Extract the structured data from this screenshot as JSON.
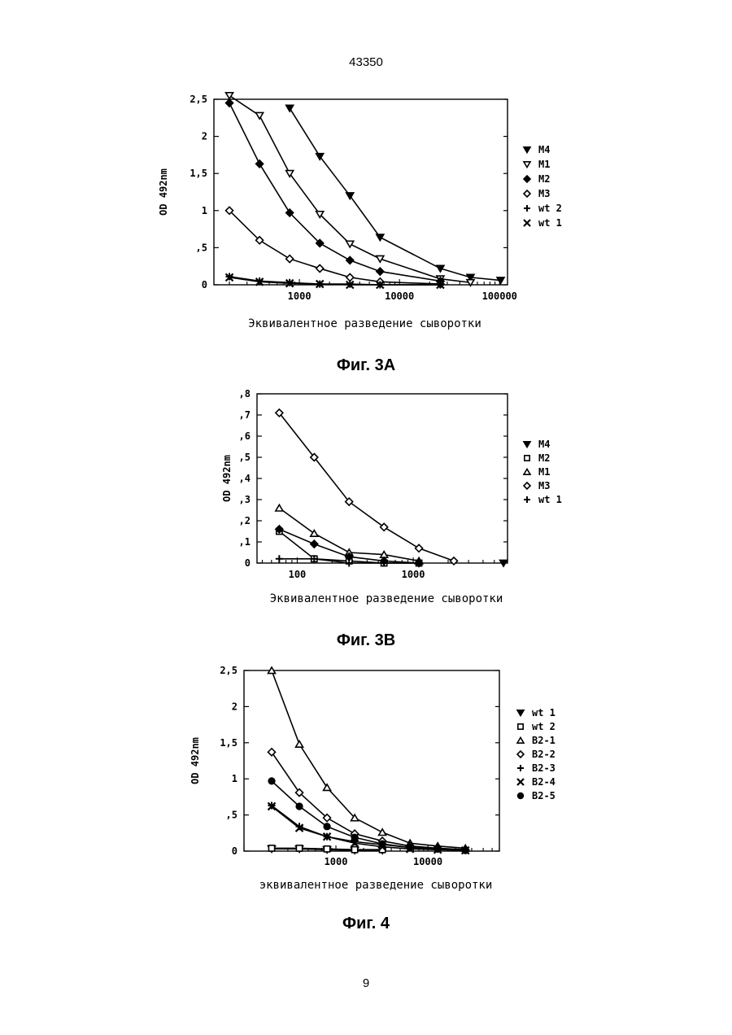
{
  "page": {
    "header_number": "43350",
    "footer_number": "9"
  },
  "charts": [
    {
      "caption": "Фиг. 3А"
    },
    {
      "caption": "Фиг. 3В"
    },
    {
      "caption": "Фиг. 4"
    }
  ],
  "chart_data": [
    {
      "type": "line",
      "ylabel": "OD 492nm",
      "xlabel": "Эквивалентное разведение сыворотки",
      "x_scale": "log",
      "xlim": [
        140,
        120000
      ],
      "ylim": [
        0,
        2.5
      ],
      "yticks": [
        {
          "v": 0,
          "l": "0"
        },
        {
          "v": 0.5,
          "l": ",5"
        },
        {
          "v": 1,
          "l": "1"
        },
        {
          "v": 1.5,
          "l": "1,5"
        },
        {
          "v": 2,
          "l": "2"
        },
        {
          "v": 2.5,
          "l": "2,5"
        }
      ],
      "xticks": [
        {
          "v": 1000,
          "l": "1000"
        },
        {
          "v": 10000,
          "l": "10000"
        },
        {
          "v": 100000,
          "l": "100000"
        }
      ],
      "legend_position": "right",
      "series": [
        {
          "name": "M4",
          "marker": "tri-down-filled",
          "x": [
            800,
            1600,
            3200,
            6400,
            25600,
            51200,
            102400
          ],
          "y": [
            2.38,
            1.73,
            1.2,
            0.64,
            0.22,
            0.1,
            0.06
          ]
        },
        {
          "name": "M1",
          "marker": "tri-down-open",
          "x": [
            200,
            400,
            800,
            1600,
            3200,
            6400,
            25600,
            51200
          ],
          "y": [
            2.55,
            2.28,
            1.5,
            0.95,
            0.55,
            0.35,
            0.08,
            0.03
          ]
        },
        {
          "name": "M2",
          "marker": "diamond-filled",
          "x": [
            200,
            400,
            800,
            1600,
            3200,
            6400,
            25600
          ],
          "y": [
            2.45,
            1.63,
            0.97,
            0.56,
            0.33,
            0.18,
            0.05
          ]
        },
        {
          "name": "M3",
          "marker": "diamond-open",
          "x": [
            200,
            400,
            800,
            1600,
            3200,
            6400,
            25600
          ],
          "y": [
            1.0,
            0.6,
            0.35,
            0.22,
            0.1,
            0.04,
            0.01
          ]
        },
        {
          "name": "wt 2",
          "marker": "plus",
          "x": [
            200,
            400,
            800,
            1600,
            3200,
            6400,
            25600
          ],
          "y": [
            0.11,
            0.05,
            0.03,
            0.01,
            0.01,
            0.0,
            0.0
          ]
        },
        {
          "name": "wt 1",
          "marker": "x",
          "x": [
            200,
            400,
            800,
            1600,
            3200,
            6400,
            25600
          ],
          "y": [
            0.1,
            0.04,
            0.02,
            0.01,
            0.0,
            0.0,
            0.0
          ]
        }
      ]
    },
    {
      "type": "line",
      "ylabel": "OD 492nm",
      "xlabel": "Эквивалентное разведение сыворотки",
      "x_scale": "log",
      "xlim": [
        45,
        6500
      ],
      "ylim": [
        0,
        0.8
      ],
      "yticks": [
        {
          "v": 0,
          "l": "0"
        },
        {
          "v": 0.1,
          "l": ",1"
        },
        {
          "v": 0.2,
          "l": ",2"
        },
        {
          "v": 0.3,
          "l": ",3"
        },
        {
          "v": 0.4,
          "l": ",4"
        },
        {
          "v": 0.5,
          "l": ",5"
        },
        {
          "v": 0.6,
          "l": ",6"
        },
        {
          "v": 0.7,
          "l": ",7"
        },
        {
          "v": 0.8,
          "l": ",8"
        }
      ],
      "xticks": [
        {
          "v": 100,
          "l": "100"
        },
        {
          "v": 1000,
          "l": "1000"
        }
      ],
      "legend_position": "right",
      "series": [
        {
          "name": "M4",
          "marker": "tri-down-filled",
          "x": [
            6000
          ],
          "y": [
            0.0
          ]
        },
        {
          "name": "M2",
          "marker": "square-open",
          "x": [
            70,
            140,
            280,
            560,
            1120
          ],
          "y": [
            0.15,
            0.02,
            0.01,
            0.0,
            0.0
          ]
        },
        {
          "name": "M1",
          "marker": "tri-up-open",
          "x": [
            70,
            140,
            280,
            560,
            1120
          ],
          "y": [
            0.26,
            0.14,
            0.05,
            0.04,
            0.01
          ]
        },
        {
          "name": "M3",
          "marker": "diamond-open",
          "x": [
            70,
            140,
            280,
            560,
            1120,
            2240
          ],
          "y": [
            0.71,
            0.5,
            0.29,
            0.17,
            0.07,
            0.01
          ]
        },
        {
          "name": "wt 1",
          "marker": "plus",
          "x": [
            70,
            140,
            280,
            560,
            1120
          ],
          "y": [
            0.02,
            0.02,
            0.0,
            0.0,
            0.0
          ]
        },
        {
          "name": "",
          "marker": "diamond-filled",
          "x": [
            70,
            140,
            280,
            560,
            1120
          ],
          "y": [
            0.16,
            0.09,
            0.03,
            0.01,
            0.0
          ]
        }
      ]
    },
    {
      "type": "line",
      "ylabel": "OD 492nm",
      "xlabel": "эквивалентное разведение сыворотки",
      "x_scale": "log",
      "xlim": [
        100,
        60000
      ],
      "ylim": [
        0,
        2.5
      ],
      "yticks": [
        {
          "v": 0,
          "l": "0"
        },
        {
          "v": 0.5,
          "l": ",5"
        },
        {
          "v": 1,
          "l": "1"
        },
        {
          "v": 1.5,
          "l": "1,5"
        },
        {
          "v": 2,
          "l": "2"
        },
        {
          "v": 2.5,
          "l": "2,5"
        }
      ],
      "xticks": [
        {
          "v": 1000,
          "l": "1000"
        },
        {
          "v": 10000,
          "l": "10000"
        }
      ],
      "legend_position": "right",
      "series": [
        {
          "name": "wt 1",
          "marker": "tri-down-filled",
          "x": [
            200,
            400,
            800,
            1600,
            3200
          ],
          "y": [
            0.03,
            0.03,
            0.02,
            0.01,
            0.01
          ]
        },
        {
          "name": "wt 2",
          "marker": "square-open",
          "x": [
            200,
            400,
            800,
            1600,
            3200
          ],
          "y": [
            0.04,
            0.04,
            0.03,
            0.02,
            0.02
          ]
        },
        {
          "name": "B2-1",
          "marker": "tri-up-open",
          "x": [
            200,
            400,
            800,
            1600,
            3200,
            6400,
            12800,
            25600
          ],
          "y": [
            2.5,
            1.48,
            0.88,
            0.46,
            0.26,
            0.11,
            0.07,
            0.04
          ]
        },
        {
          "name": "B2-2",
          "marker": "diamond-open",
          "x": [
            200,
            400,
            800,
            1600,
            3200,
            6400,
            12800,
            25600
          ],
          "y": [
            1.37,
            0.81,
            0.46,
            0.24,
            0.14,
            0.07,
            0.04,
            0.02
          ]
        },
        {
          "name": "B2-3",
          "marker": "plus",
          "x": [
            200,
            400,
            800,
            1600,
            3200,
            6400,
            12800,
            25600
          ],
          "y": [
            0.63,
            0.34,
            0.2,
            0.13,
            0.09,
            0.05,
            0.03,
            0.02
          ]
        },
        {
          "name": "B2-4",
          "marker": "x",
          "x": [
            200,
            400,
            800,
            1600,
            3200,
            6400,
            12800,
            25600
          ],
          "y": [
            0.62,
            0.32,
            0.2,
            0.11,
            0.06,
            0.03,
            0.02,
            0.01
          ]
        },
        {
          "name": "B2-5",
          "marker": "circle-filled",
          "x": [
            200,
            400,
            800,
            1600,
            3200,
            6400,
            12800,
            25600
          ],
          "y": [
            0.97,
            0.62,
            0.34,
            0.19,
            0.1,
            0.05,
            0.03,
            0.01
          ]
        }
      ]
    }
  ]
}
